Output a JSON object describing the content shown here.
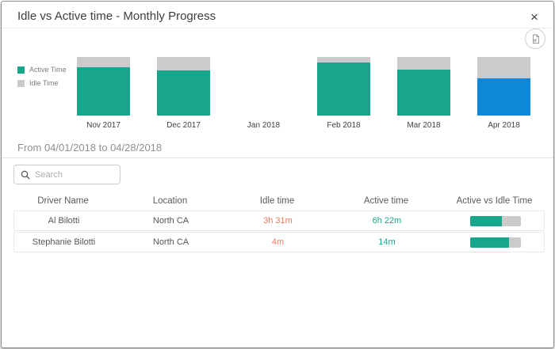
{
  "colors": {
    "active": "#17a58c",
    "idle": "#cbcbcb",
    "selected_month": "#0d87d8",
    "idle_text": "#e8795b",
    "active_text": "#17a58c"
  },
  "header": {
    "title": "Idle vs Active time - Monthly Progress",
    "close_label": "×"
  },
  "chart_data": {
    "type": "bar",
    "stacked": true,
    "categories": [
      "Nov 2017",
      "Dec 2017",
      "Jan 2018",
      "Feb 2018",
      "Mar 2018",
      "Apr 2018"
    ],
    "series": [
      {
        "name": "Active Time",
        "values_pct": [
          82,
          77,
          0,
          90,
          78,
          64
        ]
      },
      {
        "name": "Idle Time",
        "values_pct": [
          18,
          23,
          0,
          10,
          22,
          36
        ]
      }
    ],
    "selected_category": "Apr 2018",
    "legend": [
      {
        "label": "Active Time",
        "color": "#17a58c"
      },
      {
        "label": "Idle Time",
        "color": "#cbcbcb"
      }
    ],
    "legend_position": "left",
    "ylim": [
      0,
      100
    ],
    "grid": false
  },
  "period": {
    "label": "From 04/01/2018 to 04/28/2018"
  },
  "search": {
    "placeholder": "Search",
    "value": ""
  },
  "table": {
    "columns": [
      "Driver Name",
      "Location",
      "Idle time",
      "Active time",
      "Active vs Idle Time"
    ],
    "rows": [
      {
        "driver": "Al Bilotti",
        "location": "North CA",
        "idle": "3h 31m",
        "active": "6h 22m",
        "active_pct": 64
      },
      {
        "driver": "Stephanie Bilotti",
        "location": "North CA",
        "idle": "4m",
        "active": "14m",
        "active_pct": 78
      }
    ]
  }
}
